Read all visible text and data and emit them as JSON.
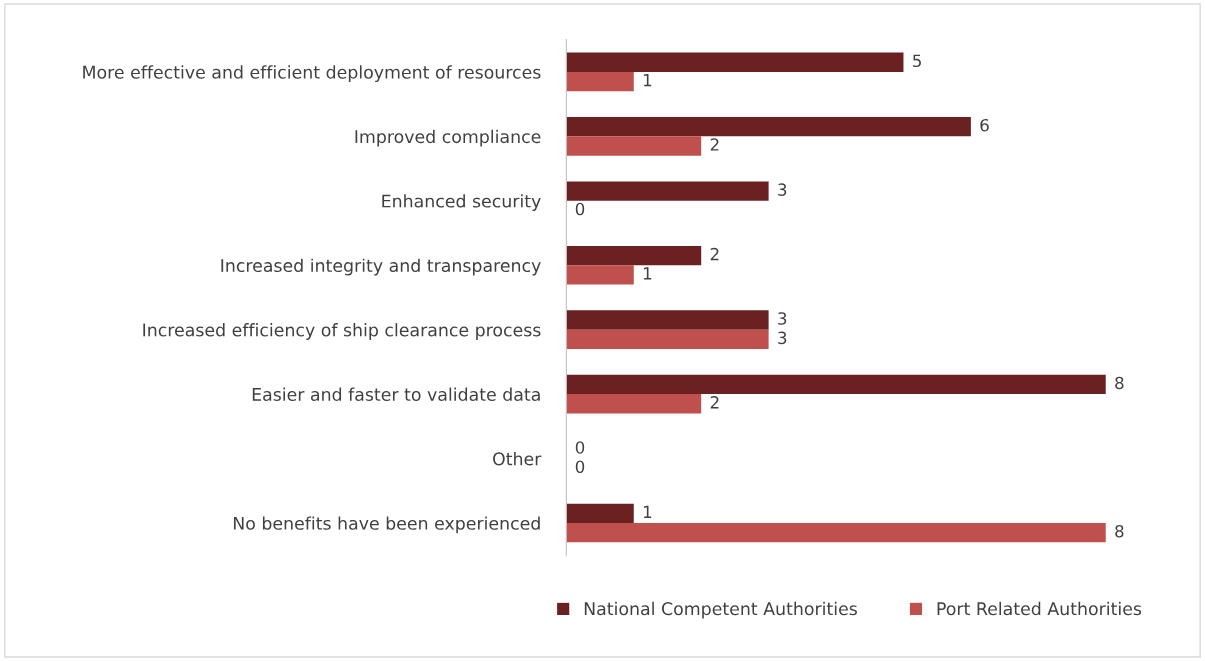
{
  "chart_data": {
    "type": "bar",
    "orientation": "horizontal",
    "categories": [
      "More effective and efficient deployment of resources",
      "Improved compliance",
      "Enhanced security",
      "Increased integrity and transparency",
      "Increased efficiency of ship clearance process",
      "Easier and faster to validate data",
      "Other",
      "No benefits have been experienced"
    ],
    "series": [
      {
        "name": "National Competent Authorities",
        "color": "#6b2121",
        "values": [
          5,
          6,
          3,
          2,
          3,
          8,
          0,
          1
        ]
      },
      {
        "name": "Port Related Authorities",
        "color": "#c0504d",
        "values": [
          1,
          2,
          0,
          1,
          3,
          2,
          0,
          8
        ]
      }
    ],
    "data_labels": true,
    "legend": "bottom",
    "grid": false,
    "tick_labels": "y"
  }
}
